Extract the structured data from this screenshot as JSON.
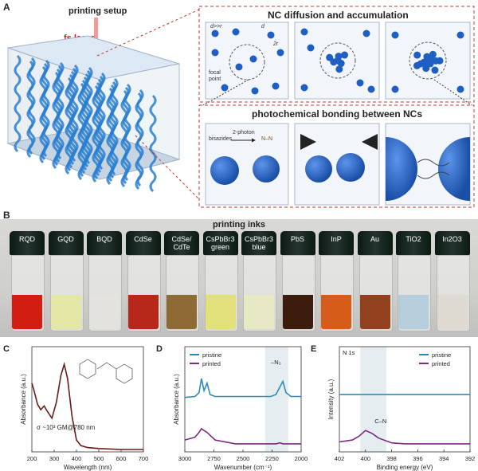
{
  "panelA": {
    "letter": "A",
    "setup_label": "printing setup",
    "laser_label": "fs laser",
    "box1_title": "NC diffusion and accumulation",
    "box2_title": "photochemical bonding between NCs",
    "d_gg_r": "d>>r",
    "d": "d",
    "two_r": "2r",
    "focal_point": "focal\npoint",
    "bisazides": "bisazides",
    "two_photon": "2-photon",
    "nn": "N–N"
  },
  "panelB": {
    "letter": "B",
    "title": "printing inks",
    "vials": [
      {
        "label": "RQD",
        "liquid": "#d11d12"
      },
      {
        "label": "GQD",
        "liquid": "#e4e6a6"
      },
      {
        "label": "BQD",
        "liquid": "#e4e2dc"
      },
      {
        "label": "CdSe",
        "liquid": "#b8281a"
      },
      {
        "label": "CdSe/\nCdTe",
        "liquid": "#8e6a34"
      },
      {
        "label": "CsPbBr3\ngreen",
        "liquid": "#e2e07a"
      },
      {
        "label": "CsPbBr3\nblue",
        "liquid": "#e7e9c5"
      },
      {
        "label": "PbS",
        "liquid": "#3b1c0d"
      },
      {
        "label": "InP",
        "liquid": "#d65c1a"
      },
      {
        "label": "Au",
        "liquid": "#92401e"
      },
      {
        "label": "TiO2",
        "liquid": "#b6cedb"
      },
      {
        "label": "In2O3",
        "liquid": "#dedad2"
      }
    ]
  },
  "panelC": {
    "letter": "C",
    "ylabel": "Absorbance (a.u.)",
    "xlabel": "Wavelength (nm)",
    "annotation": "σ ~10³ GM@780 nm",
    "xticks": [
      "200",
      "300",
      "400",
      "500",
      "600",
      "700"
    ]
  },
  "panelD": {
    "letter": "D",
    "ylabel": "Absorbance (a.u.)",
    "xlabel": "Wavenumber (cm⁻¹)",
    "legend": [
      "pristine",
      "printed"
    ],
    "peak_label": "–N₃",
    "xticks": [
      "3000",
      "2750",
      "2500",
      "2250",
      "2000"
    ]
  },
  "panelE": {
    "letter": "E",
    "ylabel": "Intensity (a.u.)",
    "xlabel": "Binding energy (eV)",
    "corner_label": "N 1s",
    "legend": [
      "pristine",
      "printed"
    ],
    "peak_label": "C–N",
    "xticks": [
      "402",
      "400",
      "398",
      "396",
      "394",
      "392"
    ]
  },
  "colors": {
    "pristine": "#2f8bb6",
    "printed": "#7b2a7f",
    "absorbance": "#6b1a14",
    "nc_blue": "#1f5fc4",
    "dashed_red": "#c0392b"
  },
  "chart_data": [
    {
      "type": "line",
      "title": "",
      "xlabel": "Wavelength (nm)",
      "ylabel": "Absorbance (a.u.)",
      "xlim": [
        200,
        700
      ],
      "series": [
        {
          "x": [
            200,
            210,
            225,
            240,
            255,
            270,
            290,
            310,
            330,
            345,
            360,
            380,
            400,
            420,
            450,
            500,
            600,
            700
          ],
          "y": [
            0.7,
            0.62,
            0.48,
            0.42,
            0.46,
            0.4,
            0.33,
            0.5,
            0.78,
            0.9,
            0.75,
            0.35,
            0.1,
            0.04,
            0.02,
            0.01,
            0.0,
            0.0
          ]
        }
      ]
    },
    {
      "type": "line",
      "title": "",
      "xlabel": "Wavenumber (cm⁻¹)",
      "ylabel": "Absorbance (a.u.)",
      "xlim": [
        3100,
        1950
      ],
      "series": [
        {
          "name": "pristine",
          "x": [
            3100,
            3000,
            2960,
            2935,
            2910,
            2880,
            2850,
            2800,
            2600,
            2400,
            2250,
            2200,
            2160,
            2130,
            2100,
            2050,
            1950
          ],
          "y": [
            0.55,
            0.56,
            0.6,
            0.75,
            0.62,
            0.7,
            0.58,
            0.56,
            0.56,
            0.56,
            0.56,
            0.58,
            0.66,
            0.72,
            0.6,
            0.56,
            0.56
          ]
        },
        {
          "name": "printed",
          "x": [
            3100,
            3000,
            2960,
            2935,
            2910,
            2880,
            2850,
            2800,
            2600,
            2400,
            2250,
            2200,
            2160,
            2130,
            2100,
            2050,
            1950
          ],
          "y": [
            0.1,
            0.13,
            0.18,
            0.22,
            0.2,
            0.18,
            0.15,
            0.1,
            0.06,
            0.06,
            0.06,
            0.06,
            0.07,
            0.06,
            0.06,
            0.06,
            0.06
          ]
        }
      ]
    },
    {
      "type": "line",
      "title": "",
      "xlabel": "Binding energy (eV)",
      "ylabel": "Intensity (a.u.)",
      "xlim": [
        402,
        392
      ],
      "series": [
        {
          "name": "pristine",
          "x": [
            402,
            400,
            398,
            396,
            394,
            392
          ],
          "y": [
            0.58,
            0.58,
            0.58,
            0.58,
            0.58,
            0.58
          ]
        },
        {
          "name": "printed",
          "x": [
            402,
            401,
            400.5,
            400,
            399.5,
            399,
            398,
            397,
            396,
            394,
            392
          ],
          "y": [
            0.08,
            0.1,
            0.14,
            0.2,
            0.17,
            0.12,
            0.07,
            0.06,
            0.06,
            0.06,
            0.06
          ]
        }
      ]
    }
  ]
}
